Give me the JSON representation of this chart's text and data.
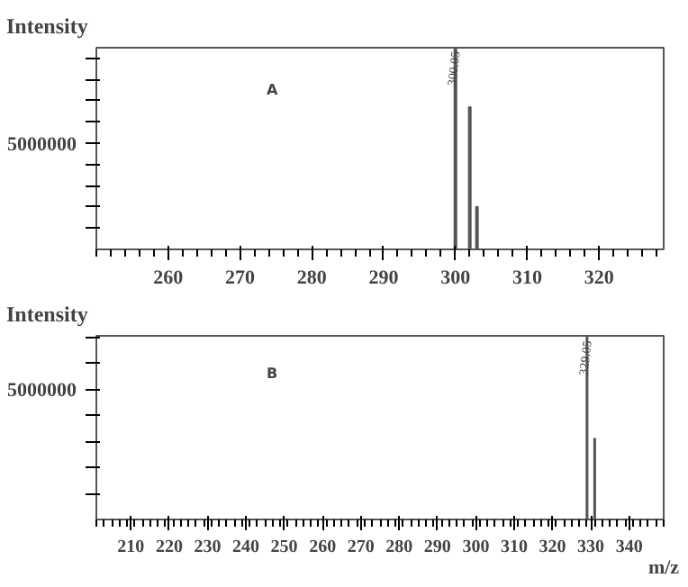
{
  "chart_data": [
    {
      "type": "bar",
      "ylabel": "Intensity",
      "x": [
        300,
        302,
        303
      ],
      "values": [
        9500000,
        6700000,
        2000000
      ],
      "color": "#555555",
      "xlim": [
        250,
        329
      ],
      "xticks": [
        260,
        270,
        280,
        290,
        300,
        310,
        320
      ],
      "ylim": [
        0,
        9500000
      ],
      "yticks": [
        {
          "value": 1000000,
          "label": null
        },
        {
          "value": 2000000,
          "label": null
        },
        {
          "value": 3000000,
          "label": null
        },
        {
          "value": 4000000,
          "label": null
        },
        5000000,
        {
          "value": 6000000,
          "label": null
        },
        {
          "value": 7000000,
          "label": null
        },
        {
          "value": 8000000,
          "label": null
        },
        {
          "value": 9000000,
          "label": null
        }
      ],
      "annotations": [
        "A",
        {
          "text": "300.05",
          "x": 300,
          "y": 9500000
        }
      ]
    },
    {
      "type": "bar",
      "ylabel": "Intensity",
      "xlabel": "m/z",
      "x": [
        329,
        331
      ],
      "values": [
        7000000,
        3100000
      ],
      "color": "#555555",
      "xlim": [
        201,
        349
      ],
      "xticks": [
        210,
        220,
        230,
        240,
        250,
        260,
        270,
        280,
        290,
        300,
        310,
        320,
        330,
        340
      ],
      "ylim": [
        0,
        7050000
      ],
      "yticks": [
        {
          "value": 1000000,
          "label": null
        },
        {
          "value": 2000000,
          "label": null
        },
        {
          "value": 3000000,
          "label": null
        },
        {
          "value": 4000000,
          "label": null
        },
        5000000,
        {
          "value": 6000000,
          "label": null
        },
        {
          "value": 7000000,
          "label": null
        }
      ],
      "annotations": [
        "B",
        {
          "text": "329.05",
          "x": 329,
          "y": 7000000
        }
      ]
    }
  ]
}
